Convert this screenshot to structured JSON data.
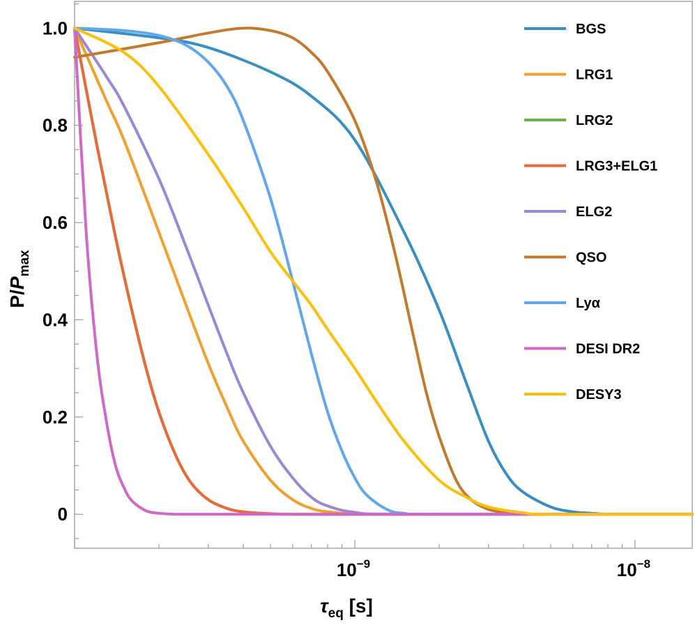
{
  "chart_data": {
    "type": "line",
    "title": "",
    "xlabel": "τ_eq [s]",
    "xlabel_main": "τ",
    "xlabel_sub": "eq",
    "xlabel_unit": " [s]",
    "ylabel": "P/P_max",
    "ylabel_main": "P/",
    "ylabel_italic": "P",
    "ylabel_sub": "max",
    "x_scale": "log",
    "xlim": [
      1e-10,
      1.6e-08
    ],
    "ylim": [
      -0.07,
      1.055
    ],
    "y_ticks": [
      {
        "value": 0,
        "label": "0"
      },
      {
        "value": 0.2,
        "label": "0.2"
      },
      {
        "value": 0.4,
        "label": "0.4"
      },
      {
        "value": 0.6,
        "label": "0.6"
      },
      {
        "value": 0.8,
        "label": "0.8"
      },
      {
        "value": 1.0,
        "label": "1.0"
      }
    ],
    "x_ticks": [
      {
        "value": 1e-09,
        "label_base": "10",
        "label_exp": "−9"
      },
      {
        "value": 1e-08,
        "label_base": "10",
        "label_exp": "−8"
      }
    ],
    "legend_position": "right",
    "series": [
      {
        "name": "BGS",
        "color": "#3a8fc2",
        "x": [
          1e-10,
          2e-10,
          3e-10,
          5e-10,
          7e-10,
          1e-09,
          1.5e-09,
          2e-09,
          2.5e-09,
          3e-09,
          3.5e-09,
          4e-09,
          5e-09,
          6e-09,
          7e-09,
          8e-09,
          1e-08,
          1.5e-08
        ],
        "y": [
          1.0,
          0.98,
          0.96,
          0.91,
          0.86,
          0.77,
          0.58,
          0.42,
          0.27,
          0.15,
          0.08,
          0.045,
          0.015,
          0.005,
          0.002,
          0.0,
          0.0,
          0.0
        ]
      },
      {
        "name": "LRG1",
        "color": "#f0a030",
        "x": [
          1e-10,
          1.3e-10,
          1.5e-10,
          2e-10,
          2.5e-10,
          3e-10,
          3.5e-10,
          4e-10,
          5e-10,
          6e-10,
          7e-10,
          8e-10,
          1e-09,
          1.5e-09,
          1.6e-08
        ],
        "y": [
          1.0,
          0.85,
          0.77,
          0.58,
          0.43,
          0.31,
          0.22,
          0.15,
          0.07,
          0.03,
          0.012,
          0.005,
          0.001,
          0.0,
          0.0
        ]
      },
      {
        "name": "LRG2",
        "color": "#6ab04c",
        "x": [
          1e-10,
          1.2e-10,
          1.4e-10,
          1.6e-10,
          1.8e-10,
          2e-10,
          2.3e-10,
          2.6e-10,
          3e-10,
          3.5e-10,
          4e-10,
          5e-10,
          6e-10,
          1e-09,
          1.6e-08
        ],
        "y": [
          1.0,
          0.76,
          0.57,
          0.42,
          0.3,
          0.21,
          0.12,
          0.065,
          0.03,
          0.012,
          0.005,
          0.001,
          0.0,
          0.0,
          0.0
        ]
      },
      {
        "name": "LRG3+ELG1",
        "color": "#e86a3a",
        "x": [
          1e-10,
          1.2e-10,
          1.4e-10,
          1.6e-10,
          1.8e-10,
          2e-10,
          2.3e-10,
          2.6e-10,
          3e-10,
          3.5e-10,
          4e-10,
          5e-10,
          6e-10,
          1e-09,
          1.6e-08
        ],
        "y": [
          1.0,
          0.76,
          0.57,
          0.42,
          0.3,
          0.21,
          0.12,
          0.065,
          0.03,
          0.012,
          0.005,
          0.001,
          0.0,
          0.0,
          0.0
        ]
      },
      {
        "name": "ELG2",
        "color": "#9b87d6",
        "x": [
          1e-10,
          1.3e-10,
          1.5e-10,
          2e-10,
          2.5e-10,
          3e-10,
          3.5e-10,
          4e-10,
          5e-10,
          6e-10,
          7e-10,
          8e-10,
          1e-09,
          1.5e-09,
          1.6e-08
        ],
        "y": [
          1.0,
          0.9,
          0.84,
          0.69,
          0.55,
          0.43,
          0.33,
          0.25,
          0.14,
          0.075,
          0.035,
          0.017,
          0.004,
          0.0,
          0.0
        ]
      },
      {
        "name": "QSO",
        "color": "#c47a2c",
        "x": [
          1e-10,
          2e-10,
          3e-10,
          4e-10,
          5e-10,
          6e-10,
          7e-10,
          8e-10,
          1e-09,
          1.2e-09,
          1.4e-09,
          1.6e-09,
          1.8e-09,
          2e-09,
          2.3e-09,
          2.6e-09,
          3e-09,
          3.5e-09,
          4e-09,
          1.6e-08
        ],
        "y": [
          0.94,
          0.97,
          0.99,
          1.0,
          0.995,
          0.98,
          0.95,
          0.91,
          0.81,
          0.68,
          0.53,
          0.38,
          0.25,
          0.16,
          0.07,
          0.03,
          0.01,
          0.003,
          0.0,
          0.0
        ]
      },
      {
        "name": "Lyα",
        "color": "#62a6ec",
        "x": [
          1e-10,
          1.5e-10,
          2e-10,
          2.5e-10,
          3e-10,
          3.5e-10,
          4e-10,
          5e-10,
          6e-10,
          7e-10,
          8e-10,
          9e-10,
          1e-09,
          1.1e-09,
          1.3e-09,
          1.5e-09,
          2e-09,
          1.6e-08
        ],
        "y": [
          1.0,
          0.995,
          0.985,
          0.965,
          0.93,
          0.88,
          0.81,
          0.65,
          0.48,
          0.33,
          0.21,
          0.13,
          0.075,
          0.04,
          0.01,
          0.002,
          0.0,
          0.0
        ]
      },
      {
        "name": "DESI DR2",
        "color": "#d068c8",
        "x": [
          1e-10,
          1.1e-10,
          1.2e-10,
          1.3e-10,
          1.4e-10,
          1.5e-10,
          1.6e-10,
          1.8e-10,
          2e-10,
          2.3e-10,
          2.6e-10,
          1e-09,
          1.6e-08
        ],
        "y": [
          1.0,
          0.58,
          0.33,
          0.19,
          0.1,
          0.055,
          0.028,
          0.007,
          0.002,
          0.0,
          0.0,
          0.0,
          0.0
        ]
      },
      {
        "name": "DESY3",
        "color": "#f9c10e",
        "x": [
          1e-10,
          1.5e-10,
          2e-10,
          3e-10,
          4e-10,
          5e-10,
          6e-10,
          7e-10,
          8e-10,
          1e-09,
          1.2e-09,
          1.5e-09,
          2e-09,
          2.5e-09,
          3e-09,
          4e-09,
          5e-09,
          1.6e-08
        ],
        "y": [
          1.0,
          0.95,
          0.88,
          0.74,
          0.63,
          0.54,
          0.48,
          0.43,
          0.38,
          0.3,
          0.23,
          0.15,
          0.07,
          0.035,
          0.015,
          0.003,
          0.0,
          0.0
        ]
      }
    ]
  }
}
